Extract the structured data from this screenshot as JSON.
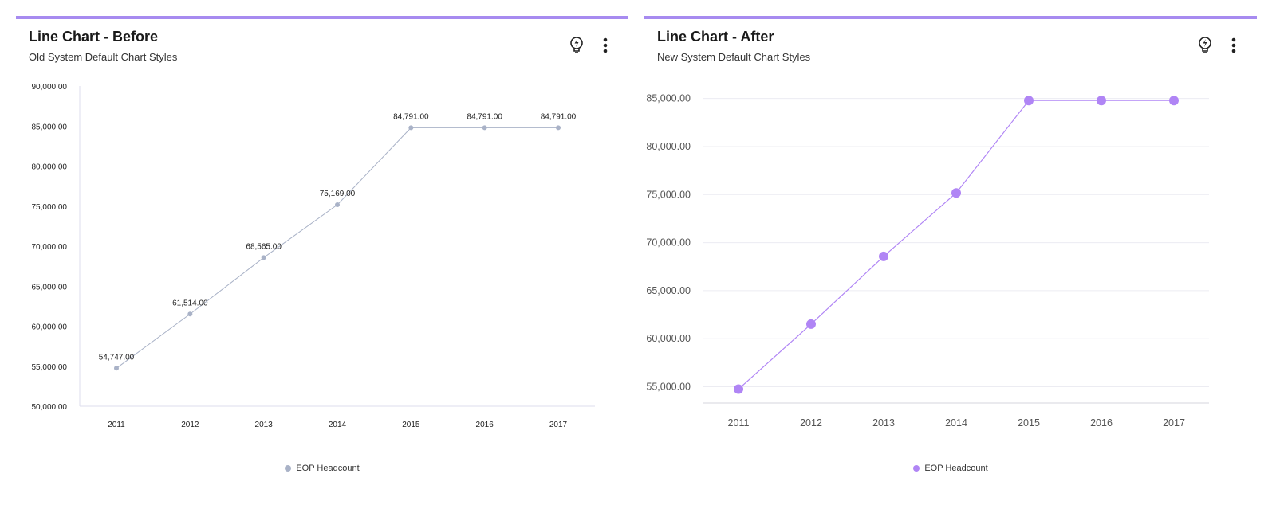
{
  "left": {
    "title": "Line Chart - Before",
    "subtitle": "Old System Default Chart Styles",
    "legend_label": "EOP Headcount",
    "colors": {
      "line": "#a9b2c7",
      "accent": "#a78bf0"
    }
  },
  "right": {
    "title": "Line Chart - After",
    "subtitle": "New System Default Chart Styles",
    "legend_label": "EOP Headcount",
    "colors": {
      "line": "#b085f5",
      "accent": "#a78bf0"
    }
  },
  "icons": [
    "lightbulb-icon",
    "more-vertical-icon"
  ],
  "chart_data": [
    {
      "type": "line",
      "title": "Line Chart - Before",
      "subtitle": "Old System Default Chart Styles",
      "categories": [
        "2011",
        "2012",
        "2013",
        "2014",
        "2015",
        "2016",
        "2017"
      ],
      "series": [
        {
          "name": "EOP Headcount",
          "values": [
            54747,
            61514,
            68565,
            75169,
            84791,
            84791,
            84791
          ]
        }
      ],
      "data_labels": [
        "54,747.00",
        "61,514.00",
        "68,565.00",
        "75,169.00",
        "84,791.00",
        "84,791.00",
        "84,791.00"
      ],
      "y_ticks": [
        "50,000.00",
        "55,000.00",
        "60,000.00",
        "65,000.00",
        "70,000.00",
        "75,000.00",
        "80,000.00",
        "85,000.00",
        "90,000.00"
      ],
      "ylim": [
        50000,
        90000
      ],
      "grid": false,
      "legend": "bottom-center"
    },
    {
      "type": "line",
      "title": "Line Chart - After",
      "subtitle": "New System Default Chart Styles",
      "categories": [
        "2011",
        "2012",
        "2013",
        "2014",
        "2015",
        "2016",
        "2017"
      ],
      "series": [
        {
          "name": "EOP Headcount",
          "values": [
            54747,
            61514,
            68565,
            75169,
            84791,
            84791,
            84791
          ]
        }
      ],
      "y_ticks": [
        "55,000.00",
        "60,000.00",
        "65,000.00",
        "70,000.00",
        "75,000.00",
        "80,000.00",
        "85,000.00"
      ],
      "ylim": [
        53300,
        86300
      ],
      "grid": true,
      "legend": "bottom-center"
    }
  ]
}
